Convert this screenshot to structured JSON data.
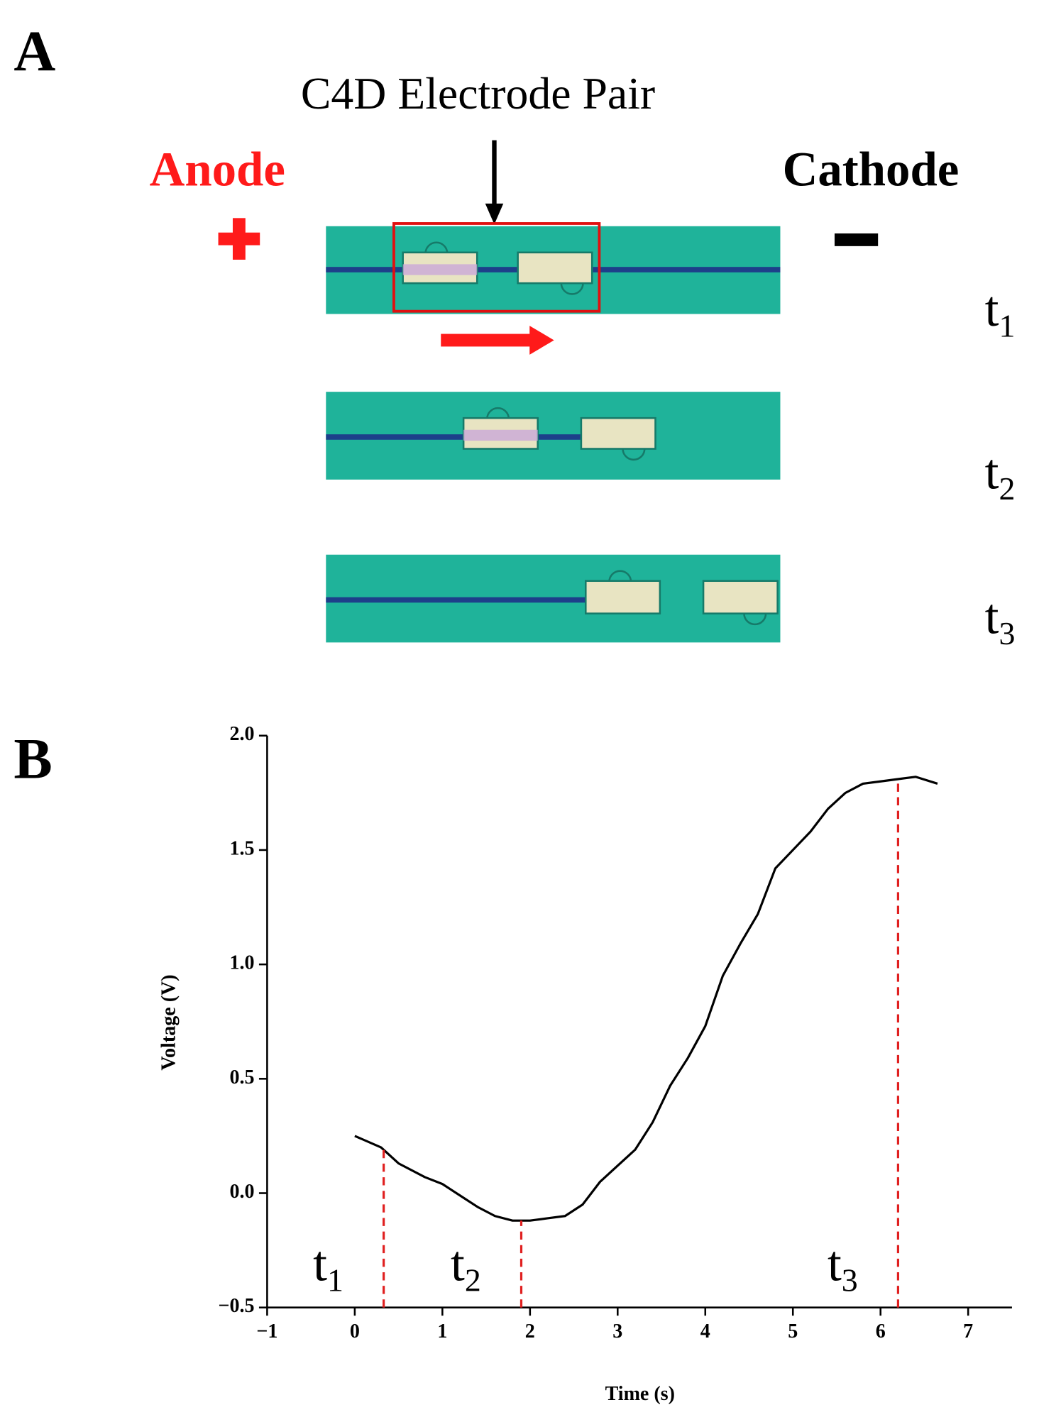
{
  "panel_a": {
    "label": "A",
    "electrode_label": "C4D Electrode Pair",
    "anode": "Anode",
    "cathode": "Cathode",
    "time_labels": [
      {
        "label": "t",
        "sub": "1"
      },
      {
        "label": "t",
        "sub": "2"
      },
      {
        "label": "t",
        "sub": "3"
      }
    ]
  },
  "chart_data": {
    "type": "line",
    "panel_label": "B",
    "xlabel": "Time (s)",
    "ylabel": "Voltage (V)",
    "color": "#000000",
    "x": [
      0,
      0.3,
      0.5,
      0.8,
      1.0,
      1.2,
      1.4,
      1.6,
      1.8,
      2.0,
      2.2,
      2.4,
      2.6,
      2.8,
      3.0,
      3.2,
      3.4,
      3.6,
      3.8,
      4.0,
      4.2,
      4.4,
      4.6,
      4.8,
      5.0,
      5.2,
      5.4,
      5.6,
      5.8,
      6.0,
      6.2,
      6.4,
      6.65
    ],
    "values": [
      0.25,
      0.2,
      0.13,
      0.07,
      0.04,
      -0.01,
      -0.06,
      -0.1,
      -0.12,
      -0.12,
      -0.11,
      -0.1,
      -0.05,
      0.05,
      0.12,
      0.19,
      0.31,
      0.47,
      0.59,
      0.73,
      0.95,
      1.09,
      1.22,
      1.42,
      1.5,
      1.58,
      1.68,
      1.75,
      1.79,
      1.8,
      1.81,
      1.82,
      1.79
    ],
    "xlim": [
      -1,
      7.5
    ],
    "ylim": [
      -0.5,
      2.0
    ],
    "xticks": [
      {
        "value": -1,
        "label": "−1"
      },
      0,
      1,
      2,
      3,
      4,
      5,
      6,
      7
    ],
    "yticks": [
      {
        "value": -0.5,
        "label": "−0.5"
      },
      {
        "value": 0,
        "label": "0.0"
      },
      0.5,
      {
        "value": 1,
        "label": "1.0"
      },
      1.5,
      {
        "value": 2,
        "label": "2.0"
      }
    ],
    "markers": [
      {
        "x": 0.33,
        "label": "t",
        "sub": "1",
        "color": "#e02020"
      },
      {
        "x": 1.9,
        "label": "t",
        "sub": "2",
        "color": "#e02020"
      },
      {
        "x": 6.2,
        "label": "t",
        "sub": "3",
        "color": "#e02020"
      }
    ]
  }
}
